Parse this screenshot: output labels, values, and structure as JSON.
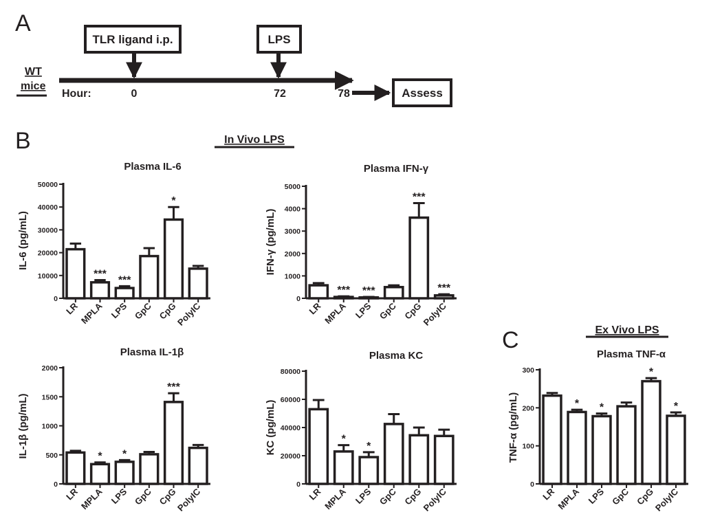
{
  "panels": {
    "a": "A",
    "b": "B",
    "c": "C"
  },
  "timeline": {
    "boxes": [
      "TLR ligand i.p.",
      "LPS",
      "Assess"
    ],
    "mice_label_lines": [
      "WT",
      "mice"
    ],
    "hour_label": "Hour:",
    "hour_ticks": [
      "0",
      "72",
      "78"
    ]
  },
  "sections": {
    "in_vivo": "In Vivo LPS",
    "ex_vivo": "Ex Vivo LPS"
  },
  "colors": {
    "ink": "#231f20",
    "bar_fill": "#ffffff"
  },
  "chart_data": [
    {
      "type": "bar",
      "title": "Plasma IL-6",
      "ylabel": "IL-6 (pg/mL)",
      "categories": [
        "LR",
        "MPLA",
        "LPS",
        "GpC",
        "CpG",
        "PolyIC"
      ],
      "values": [
        21500,
        7000,
        4500,
        18500,
        34500,
        13000
      ],
      "errors": [
        2500,
        1000,
        800,
        3500,
        5500,
        1200
      ],
      "significance": [
        "",
        "***",
        "***",
        "",
        "*",
        ""
      ],
      "ylim": [
        0,
        50000
      ],
      "yticks": [
        0,
        10000,
        20000,
        30000,
        40000,
        50000
      ]
    },
    {
      "type": "bar",
      "title": "Plasma IFN-γ",
      "ylabel": "IFN-γ (pg/mL)",
      "categories": [
        "LR",
        "MPLA",
        "LPS",
        "GpC",
        "CpG",
        "PolyIC"
      ],
      "values": [
        580,
        60,
        40,
        500,
        3600,
        130
      ],
      "errors": [
        100,
        30,
        20,
        80,
        650,
        50
      ],
      "significance": [
        "",
        "***",
        "***",
        "",
        "***",
        "***"
      ],
      "ylim": [
        0,
        5000
      ],
      "yticks": [
        0,
        1000,
        2000,
        3000,
        4000,
        5000
      ]
    },
    {
      "type": "bar",
      "title": "Plasma IL-1β",
      "ylabel": "IL-1β (pg/mL)",
      "categories": [
        "LR",
        "MPLA",
        "LPS",
        "GpC",
        "CpG",
        "PolyIC"
      ],
      "values": [
        540,
        340,
        380,
        510,
        1410,
        620
      ],
      "errors": [
        30,
        30,
        30,
        40,
        150,
        50
      ],
      "significance": [
        "",
        "*",
        "*",
        "",
        "***",
        ""
      ],
      "ylim": [
        0,
        2000
      ],
      "yticks": [
        0,
        500,
        1000,
        1500,
        2000
      ]
    },
    {
      "type": "bar",
      "title": "Plasma KC",
      "ylabel": "KC (pg/mL)",
      "categories": [
        "LR",
        "MPLA",
        "LPS",
        "GpC",
        "CpG",
        "PolyIC"
      ],
      "values": [
        53000,
        23000,
        19000,
        42500,
        34500,
        34000
      ],
      "errors": [
        6500,
        4500,
        3500,
        7000,
        5500,
        4500
      ],
      "significance": [
        "",
        "*",
        "*",
        "",
        "",
        ""
      ],
      "ylim": [
        0,
        80000
      ],
      "yticks": [
        0,
        20000,
        40000,
        60000,
        80000
      ]
    },
    {
      "type": "bar",
      "title": "Plasma TNF-α",
      "ylabel": "TNF-α (pg/mL)",
      "categories": [
        "LR",
        "MPLA",
        "LPS",
        "GpC",
        "CpG",
        "PolyIC"
      ],
      "values": [
        232,
        189,
        178,
        204,
        270,
        179
      ],
      "errors": [
        7,
        6,
        7,
        10,
        8,
        9
      ],
      "significance": [
        "",
        "*",
        "*",
        "",
        "*",
        "*"
      ],
      "ylim": [
        0,
        300
      ],
      "yticks": [
        0,
        100,
        200,
        300
      ]
    }
  ]
}
